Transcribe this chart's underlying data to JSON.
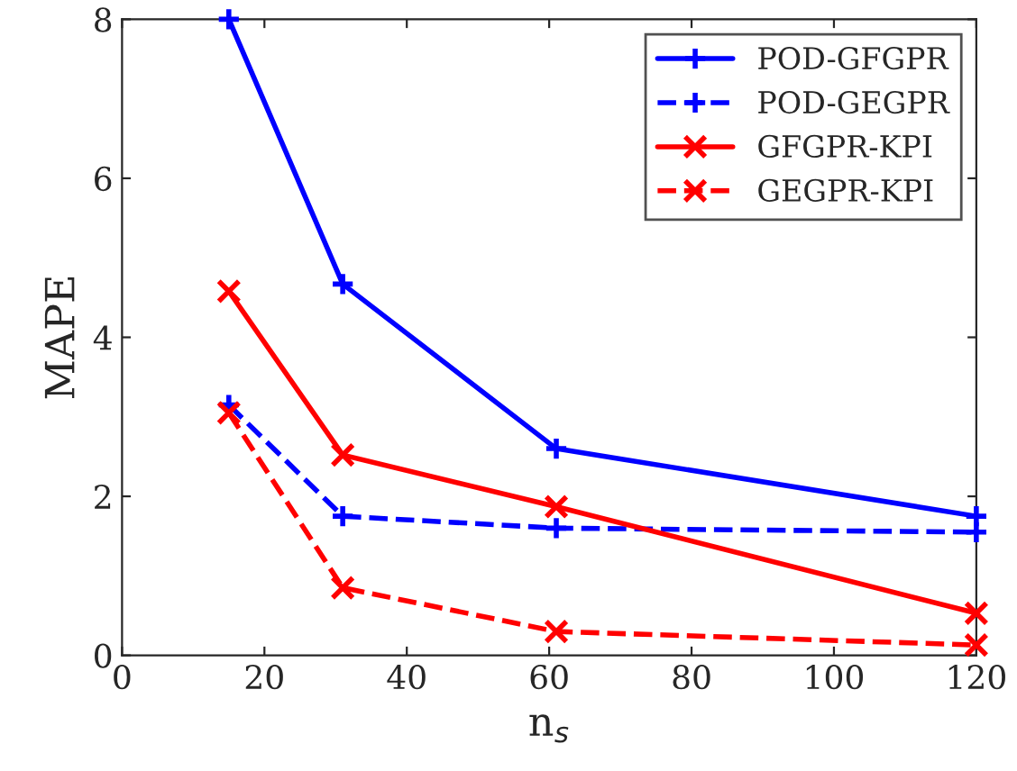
{
  "chart_data": {
    "type": "line",
    "xlabel": "n$_{s}$",
    "ylabel": "MAPE",
    "xlim": [
      0,
      120
    ],
    "xticks": [
      0,
      20,
      40,
      60,
      80,
      100,
      120
    ],
    "ylim": [
      0,
      8
    ],
    "yticks": [
      0,
      2,
      4,
      6,
      8
    ],
    "x": [
      15,
      31,
      61,
      120
    ],
    "series": [
      {
        "name": "POD-GFGPR",
        "color": "#0000ff",
        "values": [
          8.0,
          4.67,
          2.6,
          1.75
        ],
        "marker": "plus",
        "line_style": "solid"
      },
      {
        "name": "POD-GEGPR",
        "color": "#0000ff",
        "values": [
          3.15,
          1.75,
          1.6,
          1.55
        ],
        "marker": "plus",
        "line_style": "dashed"
      },
      {
        "name": "GFGPR-KPI",
        "color": "#ff0000",
        "values": [
          4.58,
          2.52,
          1.87,
          0.53
        ],
        "marker": "cross",
        "line_style": "solid"
      },
      {
        "name": "GEGPR-KPI",
        "color": "#ff0000",
        "values": [
          3.05,
          0.85,
          0.3,
          0.13
        ],
        "marker": "cross",
        "line_style": "dashed"
      }
    ],
    "legend": "top right",
    "grid": false
  }
}
